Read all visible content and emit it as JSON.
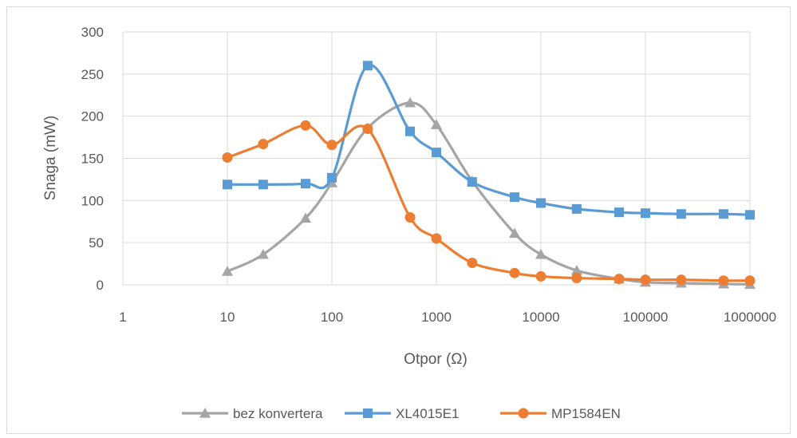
{
  "chart_data": {
    "type": "line",
    "xlabel": "Otpor (Ω)",
    "ylabel": "Snaga (mW)",
    "x_scale": "log",
    "xlim": [
      1,
      1000000
    ],
    "ylim": [
      0,
      300
    ],
    "x_ticks": [
      "1",
      "10",
      "100",
      "1000",
      "10000",
      "100000",
      "1000000"
    ],
    "y_ticks": [
      "0",
      "50",
      "100",
      "150",
      "200",
      "250",
      "300"
    ],
    "grid": true,
    "smooth": true,
    "legend_position": "bottom",
    "series": [
      {
        "name": "bez konvertera",
        "color": "#a5a5a5",
        "marker": "triangle",
        "x": [
          10,
          22,
          56,
          100,
          220,
          560,
          1000,
          2200,
          5600,
          10000,
          22000,
          56000,
          100000,
          220000,
          560000,
          1000000
        ],
        "y": [
          16,
          36,
          79,
          121,
          186,
          216,
          190,
          123,
          61,
          36,
          17,
          7,
          3,
          2,
          1,
          0.5
        ]
      },
      {
        "name": "XL4015E1",
        "color": "#5b9bd5",
        "marker": "square",
        "x": [
          10,
          22,
          56,
          100,
          220,
          560,
          1000,
          2200,
          5600,
          10000,
          22000,
          56000,
          100000,
          220000,
          560000,
          1000000
        ],
        "y": [
          119,
          119,
          120,
          127,
          260,
          182,
          157,
          122,
          104,
          97,
          90,
          86,
          85,
          84,
          84,
          83
        ]
      },
      {
        "name": "MP1584EN",
        "color": "#ed7d31",
        "marker": "circle",
        "x": [
          10,
          22,
          56,
          100,
          220,
          560,
          1000,
          2200,
          5600,
          10000,
          22000,
          56000,
          100000,
          220000,
          560000,
          1000000
        ],
        "y": [
          151,
          167,
          189,
          166,
          185,
          80,
          55,
          26,
          14,
          10,
          8,
          7,
          6,
          6,
          5,
          5
        ]
      }
    ]
  }
}
